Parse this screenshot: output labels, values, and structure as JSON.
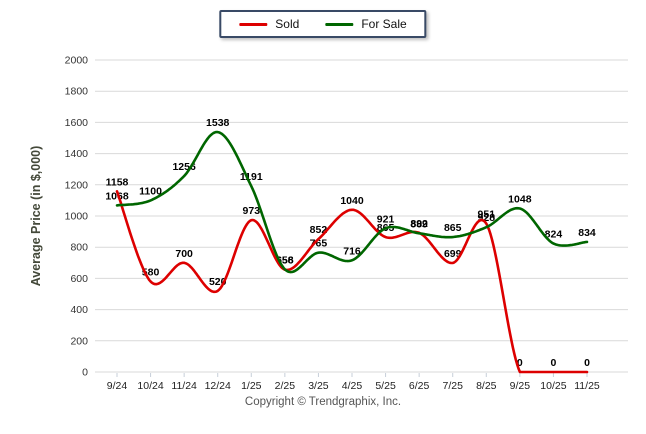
{
  "legend": {
    "items": [
      {
        "label": "Sold",
        "color": "#dd0000"
      },
      {
        "label": "For Sale",
        "color": "#006600"
      }
    ]
  },
  "footer": {
    "copyright": "Copyright © Trendgraphix, Inc."
  },
  "colors": {
    "sold_line": "#dd0000",
    "for_sale_line": "#006600",
    "gridline": "#d9d9d9",
    "legend_border": "#394a66",
    "data_label": "#000000"
  },
  "chart_data": {
    "type": "line",
    "title": "",
    "xlabel": "",
    "ylabel": "Average Price (in $,000)",
    "ylim": [
      0,
      2000
    ],
    "y_ticks": [
      0,
      200,
      400,
      600,
      800,
      1000,
      1200,
      1400,
      1600,
      1800,
      2000
    ],
    "grid": true,
    "legend_position": "top-center",
    "data_labels": true,
    "categories": [
      "9/24",
      "10/24",
      "11/24",
      "12/24",
      "1/25",
      "2/25",
      "3/25",
      "4/25",
      "5/25",
      "6/25",
      "7/25",
      "8/25",
      "9/25",
      "10/25",
      "11/25"
    ],
    "series": [
      {
        "name": "Sold",
        "color": "#dd0000",
        "values": [
          1158,
          580,
          700,
          520,
          973,
          656,
          852,
          1040,
          865,
          892,
          699,
          951,
          0,
          0,
          0
        ]
      },
      {
        "name": "For Sale",
        "color": "#006600",
        "values": [
          1068,
          1100,
          1256,
          1538,
          1191,
          658,
          765,
          716,
          921,
          889,
          865,
          928,
          1048,
          824,
          834
        ]
      }
    ]
  }
}
